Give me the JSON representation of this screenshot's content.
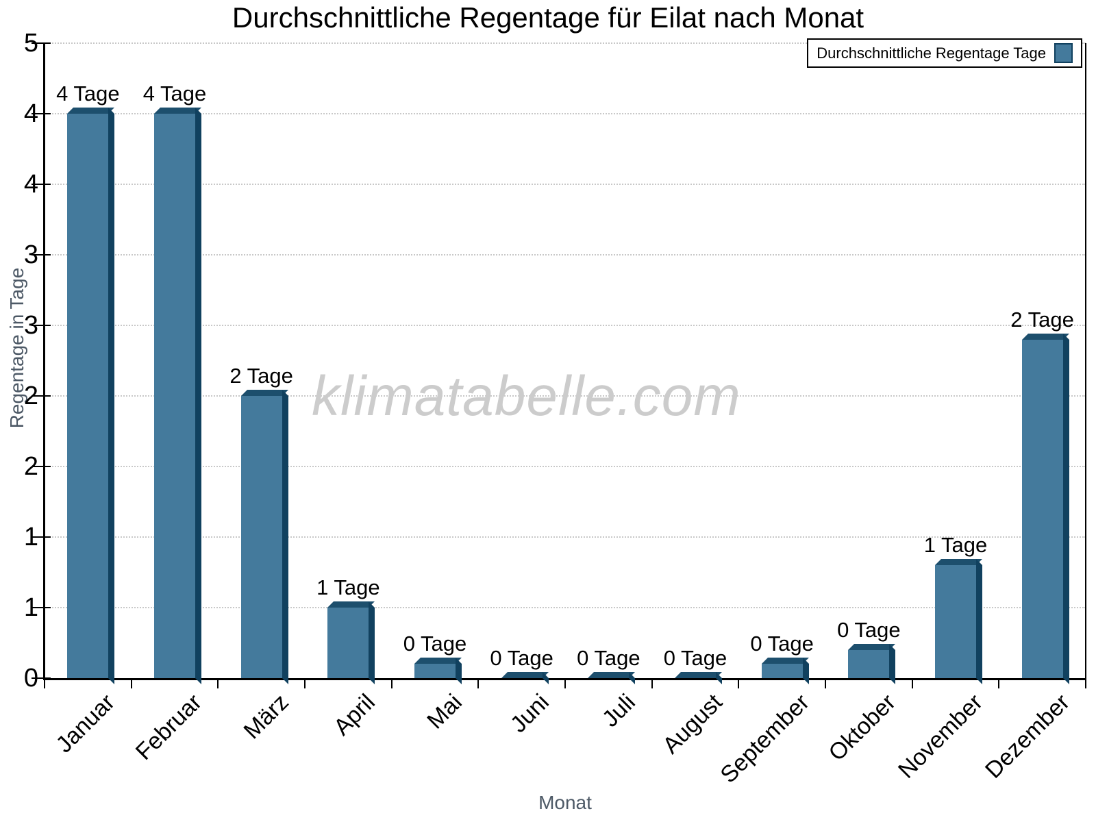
{
  "chart_data": {
    "type": "bar",
    "title": "Durchschnittliche Regentage für Eilat nach Monat",
    "xlabel": "Monat",
    "ylabel": "Regentage in Tage",
    "watermark": "klimatabelle.com",
    "legend": {
      "position": "top-right",
      "label": "Durchschnittliche Regentage Tage"
    },
    "categories": [
      "Januar",
      "Februar",
      "März",
      "April",
      "Mai",
      "Juni",
      "Juli",
      "August",
      "September",
      "Oktober",
      "November",
      "Dezember"
    ],
    "values": [
      4,
      4,
      2,
      0.5,
      0.1,
      0,
      0,
      0,
      0.1,
      0.2,
      0.8,
      2.4
    ],
    "bar_labels": [
      "4 Tage",
      "4 Tage",
      "2 Tage",
      "1 Tage",
      "0 Tage",
      "0 Tage",
      "0 Tage",
      "0 Tage",
      "0 Tage",
      "0 Tage",
      "1 Tage",
      "2 Tage"
    ],
    "ylim": [
      0,
      4.5
    ],
    "yticks": [
      {
        "value": 0,
        "label": "0"
      },
      {
        "value": 0.5,
        "label": "1"
      },
      {
        "value": 1,
        "label": "1"
      },
      {
        "value": 1.5,
        "label": "2"
      },
      {
        "value": 2,
        "label": "2"
      },
      {
        "value": 2.5,
        "label": "3"
      },
      {
        "value": 3,
        "label": "3"
      },
      {
        "value": 3.5,
        "label": "4"
      },
      {
        "value": 4,
        "label": "4"
      },
      {
        "value": 4.5,
        "label": "5"
      }
    ],
    "grid": {
      "horizontal": "dotted",
      "vertical": "none"
    },
    "colors": {
      "bar_front": "#447a9c",
      "bar_side": "#11415f",
      "bar_top": "#1d4f6d",
      "grid": "#c8c8c8",
      "axis": "#000000",
      "axis_title_text": "#4d5966",
      "watermark": "#cccccc"
    }
  }
}
